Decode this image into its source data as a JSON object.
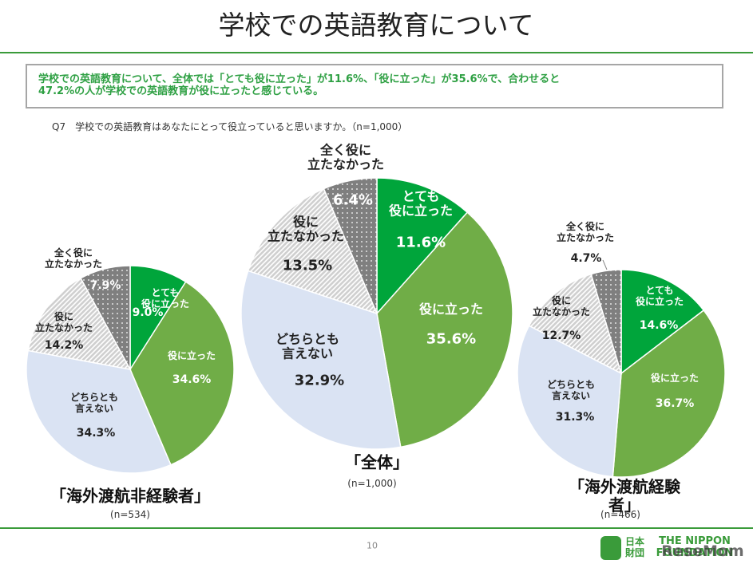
{
  "header": {
    "title": "学校での英語教育について",
    "summary": "学校での英語教育について、全体では「とても役に立った」が11.6%、「役に立った」が35.6%で、合わせると\n47.2%の人が学校での英語教育が役に立ったと感じている。",
    "question": "Q7　学校での英語教育はあなたにとって役立っていると思いますか。（n=1,000）"
  },
  "chart_data": [
    {
      "type": "pie",
      "title": "「海外渡航非経験者」",
      "subtitle": "(n=534)",
      "categories": [
        "とても\n役に立った",
        "役に立った",
        "どちらとも\n言えない",
        "役に\n立たなかった",
        "全く役に\n立たなかった"
      ],
      "values": [
        9.0,
        34.6,
        34.3,
        14.2,
        7.9
      ],
      "value_labels": [
        "9.0%",
        "34.6%",
        "34.3%",
        "14.2%",
        "7.9%"
      ],
      "colors": [
        "#00a53b",
        "#70ad47",
        "#dae3f3",
        "#d0d0d0",
        "#7f7f7f"
      ],
      "patterns": [
        "solid",
        "solid",
        "solid",
        "hatch",
        "dots"
      ]
    },
    {
      "type": "pie",
      "title": "「全体」",
      "subtitle": "(n=1,000)",
      "categories": [
        "とても\n役に立った",
        "役に立った",
        "どちらとも\n言えない",
        "役に\n立たなかった",
        "全く役に\n立たなかった"
      ],
      "values": [
        11.6,
        35.6,
        32.9,
        13.5,
        6.4
      ],
      "value_labels": [
        "11.6%",
        "35.6%",
        "32.9%",
        "13.5%",
        "6.4%"
      ],
      "colors": [
        "#00a53b",
        "#70ad47",
        "#dae3f3",
        "#d0d0d0",
        "#7f7f7f"
      ],
      "patterns": [
        "solid",
        "solid",
        "solid",
        "hatch",
        "dots"
      ]
    },
    {
      "type": "pie",
      "title": "「海外渡航経験者」",
      "subtitle": "(n=466)",
      "categories": [
        "とても\n役に立った",
        "役に立った",
        "どちらとも\n言えない",
        "役に\n立たなかった",
        "全く役に\n立たなかった"
      ],
      "values": [
        14.6,
        36.7,
        31.3,
        12.7,
        4.7
      ],
      "value_labels": [
        "14.6%",
        "36.7%",
        "31.3%",
        "12.7%",
        "4.7%"
      ],
      "colors": [
        "#00a53b",
        "#70ad47",
        "#dae3f3",
        "#d0d0d0",
        "#7f7f7f"
      ],
      "patterns": [
        "solid",
        "solid",
        "solid",
        "hatch",
        "dots"
      ]
    }
  ],
  "footer": {
    "page": "10",
    "logo_jp": "日本\n財団",
    "logo_en": "THE NIPPON\nFOUNDATION",
    "watermark": "ReseMom"
  }
}
